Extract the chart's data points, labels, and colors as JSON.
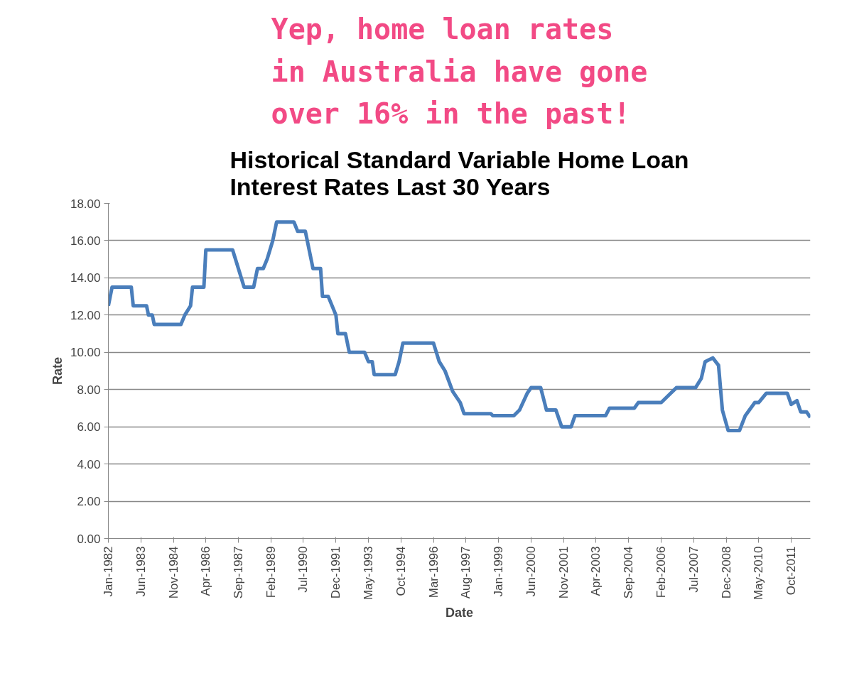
{
  "chart_data": {
    "type": "line",
    "title": "Historical Standard Variable Home Loan Interest Rates Last 30 Years",
    "xlabel": "Date",
    "ylabel": "Rate",
    "annotations": [
      "Yep, home loan rates in Australia have gone over 16% in the past!"
    ],
    "x": [
      "1982-01",
      "1982-03",
      "1983-01",
      "1983-02",
      "1983-09",
      "1983-10",
      "1983-12",
      "1984-01",
      "1985-03",
      "1985-05",
      "1985-08",
      "1985-09",
      "1986-03",
      "1986-04",
      "1987-06",
      "1987-09",
      "1987-12",
      "1988-05",
      "1988-07",
      "1988-10",
      "1988-12",
      "1989-03",
      "1989-05",
      "1990-02",
      "1990-04",
      "1990-08",
      "1990-09",
      "1990-12",
      "1991-04",
      "1991-05",
      "1991-08",
      "1991-12",
      "1992-01",
      "1992-05",
      "1992-07",
      "1993-03",
      "1993-05",
      "1993-07",
      "1993-08",
      "1994-07",
      "1994-09",
      "1994-11",
      "1996-03",
      "1996-06",
      "1996-09",
      "1997-01",
      "1997-05",
      "1997-07",
      "1998-09",
      "1998-10",
      "1999-09",
      "1999-12",
      "2000-04",
      "2000-06",
      "2000-11",
      "2001-02",
      "2001-07",
      "2001-10",
      "2002-03",
      "2002-05",
      "2003-09",
      "2003-11",
      "2004-12",
      "2005-02",
      "2006-02",
      "2006-07",
      "2006-10",
      "2007-08",
      "2007-11",
      "2008-01",
      "2008-05",
      "2008-08",
      "2008-10",
      "2009-01",
      "2009-07",
      "2009-10",
      "2010-03",
      "2010-05",
      "2010-09",
      "2011-08",
      "2011-10",
      "2012-01",
      "2012-03",
      "2012-06",
      "2012-08"
    ],
    "series": [
      {
        "color": "#4a7ebb",
        "values": [
          12.5,
          13.5,
          13.5,
          12.5,
          12.5,
          12.0,
          12.0,
          11.5,
          11.5,
          12.0,
          12.5,
          13.5,
          13.5,
          15.5,
          15.5,
          14.5,
          13.5,
          13.5,
          14.5,
          14.5,
          15.0,
          16.0,
          17.0,
          17.0,
          16.5,
          16.5,
          16.0,
          14.5,
          14.5,
          13.0,
          13.0,
          12.0,
          11.0,
          11.0,
          10.0,
          10.0,
          9.5,
          9.5,
          8.8,
          8.8,
          9.5,
          10.5,
          10.5,
          9.5,
          9.0,
          7.9,
          7.3,
          6.7,
          6.7,
          6.6,
          6.6,
          6.9,
          7.8,
          8.1,
          8.1,
          6.9,
          6.9,
          6.0,
          6.0,
          6.6,
          6.6,
          7.0,
          7.0,
          7.3,
          7.3,
          7.8,
          8.1,
          8.1,
          8.6,
          9.5,
          9.7,
          9.3,
          6.9,
          5.8,
          5.8,
          6.6,
          7.3,
          7.3,
          7.8,
          7.8,
          7.2,
          7.4,
          6.8,
          6.8,
          6.5
        ]
      }
    ],
    "xlim": [
      "1982-01",
      "2012-08"
    ],
    "xticks": [
      {
        "value": "1982-01",
        "label": "Jan-1982"
      },
      {
        "value": "1983-06",
        "label": "Jun-1983"
      },
      {
        "value": "1984-11",
        "label": "Nov-1984"
      },
      {
        "value": "1986-04",
        "label": "Apr-1986"
      },
      {
        "value": "1987-09",
        "label": "Sep-1987"
      },
      {
        "value": "1989-02",
        "label": "Feb-1989"
      },
      {
        "value": "1990-07",
        "label": "Jul-1990"
      },
      {
        "value": "1991-12",
        "label": "Dec-1991"
      },
      {
        "value": "1993-05",
        "label": "May-1993"
      },
      {
        "value": "1994-10",
        "label": "Oct-1994"
      },
      {
        "value": "1996-03",
        "label": "Mar-1996"
      },
      {
        "value": "1997-08",
        "label": "Aug-1997"
      },
      {
        "value": "1999-01",
        "label": "Jan-1999"
      },
      {
        "value": "2000-06",
        "label": "Jun-2000"
      },
      {
        "value": "2001-11",
        "label": "Nov-2001"
      },
      {
        "value": "2003-04",
        "label": "Apr-2003"
      },
      {
        "value": "2004-09",
        "label": "Sep-2004"
      },
      {
        "value": "2006-02",
        "label": "Feb-2006"
      },
      {
        "value": "2007-07",
        "label": "Jul-2007"
      },
      {
        "value": "2008-12",
        "label": "Dec-2008"
      },
      {
        "value": "2010-05",
        "label": "May-2010"
      },
      {
        "value": "2011-10",
        "label": "Oct-2011"
      }
    ],
    "ylim": [
      0,
      18
    ],
    "yticks": [
      {
        "value": 0,
        "label": "0.00"
      },
      {
        "value": 2,
        "label": "2.00"
      },
      {
        "value": 4,
        "label": "4.00"
      },
      {
        "value": 6,
        "label": "6.00"
      },
      {
        "value": 8,
        "label": "8.00"
      },
      {
        "value": 10,
        "label": "10.00"
      },
      {
        "value": 12,
        "label": "12.00"
      },
      {
        "value": 14,
        "label": "14.00"
      },
      {
        "value": 16,
        "label": "16.00"
      },
      {
        "value": 18,
        "label": "18.00"
      }
    ],
    "grid": "y",
    "marker": "none",
    "line_style": "solid"
  }
}
